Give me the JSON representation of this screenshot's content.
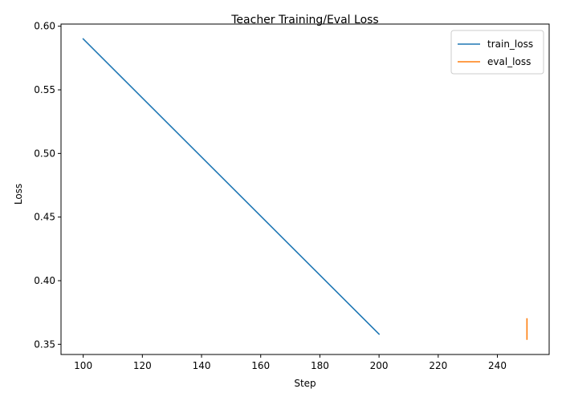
{
  "chart_data": {
    "type": "line",
    "title": "Teacher Training/Eval Loss",
    "xlabel": "Step",
    "ylabel": "Loss",
    "xlim": [
      92.5,
      257.5
    ],
    "ylim": [
      0.342,
      0.6017
    ],
    "xticks": [
      100,
      120,
      140,
      160,
      180,
      200,
      220,
      240
    ],
    "yticks": [
      0.35,
      0.4,
      0.45,
      0.5,
      0.55,
      0.6
    ],
    "ytick_labels": [
      "0.35",
      "0.40",
      "0.45",
      "0.50",
      "0.55",
      "0.60"
    ],
    "grid": false,
    "legend_position": "top-right",
    "series": [
      {
        "name": "train_loss",
        "color": "#1f77b4",
        "x": [
          100,
          200
        ],
        "y": [
          0.59,
          0.358
        ]
      },
      {
        "name": "eval_loss",
        "color": "#ff7f0e",
        "x": [
          250,
          250
        ],
        "y": [
          0.37,
          0.354
        ]
      }
    ]
  }
}
